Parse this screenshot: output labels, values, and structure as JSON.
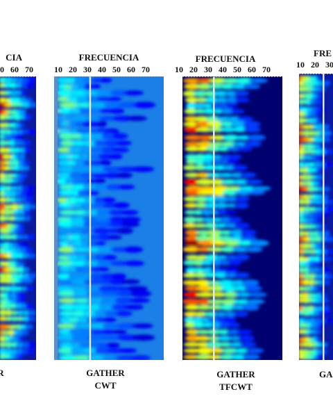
{
  "chart_data": {
    "type": "heatmap",
    "panels": [
      {
        "id": "p1",
        "header": "CIA",
        "ticks": [
          "0",
          "60",
          "70"
        ],
        "caption": "R",
        "marker_freq": null,
        "style": "dense"
      },
      {
        "id": "p2",
        "header": "FRECUENCIA",
        "ticks": [
          "10",
          "20",
          "30",
          "40",
          "50",
          "60",
          "70"
        ],
        "caption": "GATHER\nCWT",
        "marker_freq": 28,
        "style": "cwt"
      },
      {
        "id": "p3",
        "header": "FRECUENCIA",
        "ticks": [
          "10",
          "20",
          "30",
          "40",
          "50",
          "60",
          "70"
        ],
        "caption": "GATHER\nTFCWT",
        "marker_freq": 27,
        "style": "tfcwt"
      },
      {
        "id": "p4",
        "header": "FRE",
        "ticks": [
          "10",
          "20",
          "30"
        ],
        "caption": "GA",
        "marker_freq": 27,
        "style": "dense"
      }
    ],
    "colormap": [
      "#00008b",
      "#0000ff",
      "#0080ff",
      "#00ffff",
      "#80ff80",
      "#ffff00",
      "#ff8000",
      "#ff0000",
      "#800000"
    ],
    "background_colors": {
      "cwt": "#1a7fe6",
      "tfcwt": "#00006e",
      "dense": "#0a1aa0"
    },
    "marker_color": "#e8e8e8"
  }
}
